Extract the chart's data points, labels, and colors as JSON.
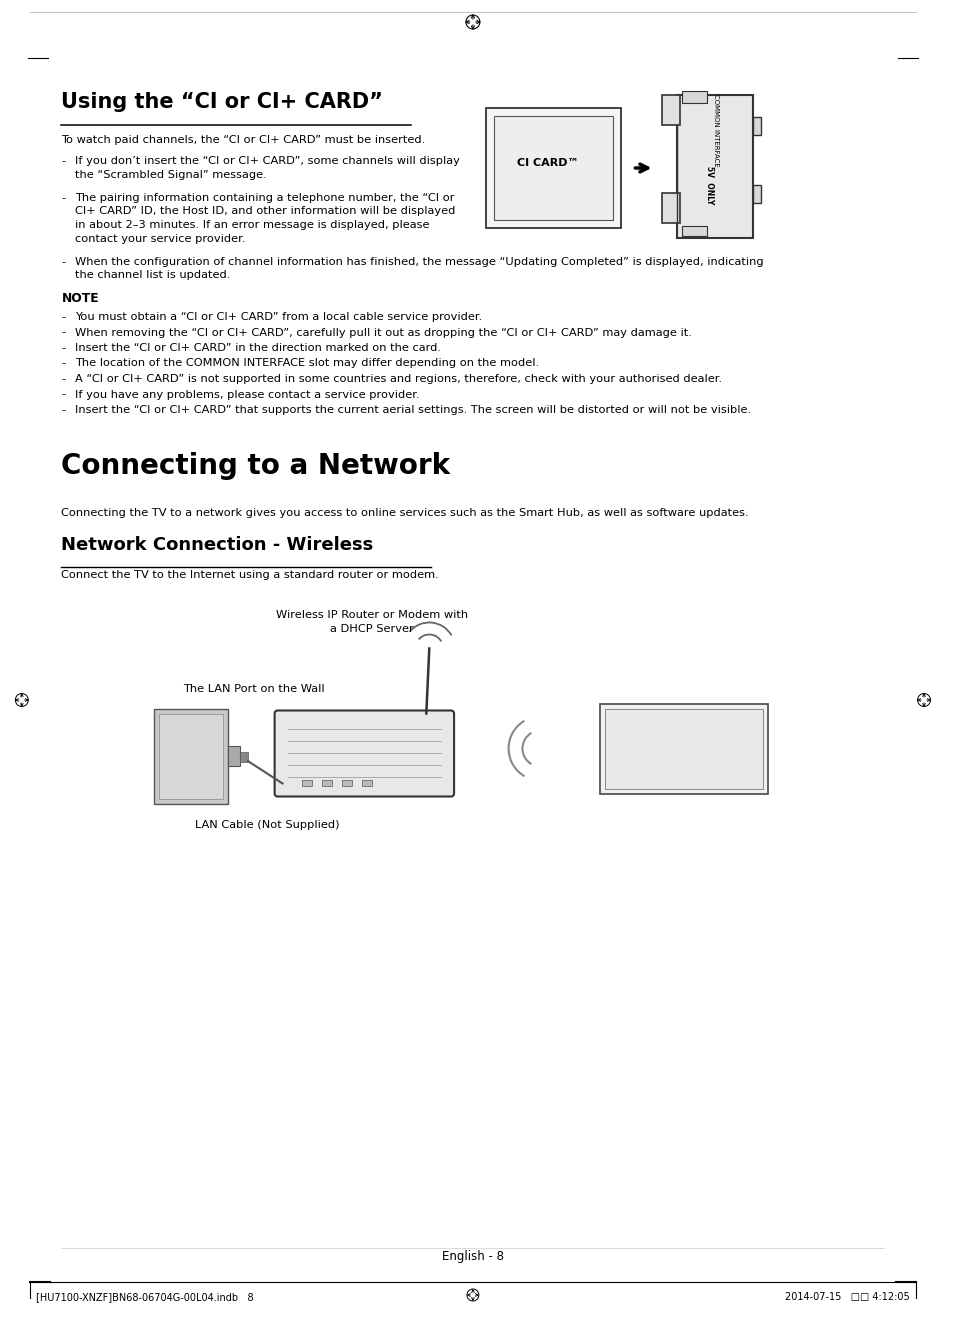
{
  "bg_color": "#ffffff",
  "text_color": "#000000",
  "page_width": 9.54,
  "page_height": 13.21,
  "title1": "Using the “CI or CI+ CARD”",
  "title2": "Connecting to a Network",
  "title3": "Network Connection - Wireless",
  "subtitle1": "To watch paid channels, the “CI or CI+ CARD” must be inserted.",
  "subtitle2": "Connecting the TV to a network gives you access to online services such as the Smart Hub, as well as software updates.",
  "subtitle3": "Connect the TV to the Internet using a standard router or modem.",
  "note_label": "NOTE",
  "bullet1_line1": "If you don’t insert the “CI or CI+ CARD”, some channels will display",
  "bullet1_line2": "the “Scrambled Signal” message.",
  "bullet2_line1": "The pairing information containing a telephone number, the “CI or",
  "bullet2_line2": "CI+ CARD” ID, the Host ID, and other information will be displayed",
  "bullet2_line3": "in about 2–3 minutes. If an error message is displayed, please",
  "bullet2_line4": "contact your service provider.",
  "bullet3_line1": "When the configuration of channel information has finished, the message “Updating Completed” is displayed, indicating",
  "bullet3_line2": "the channel list is updated.",
  "note_items": [
    "You must obtain a “CI or CI+ CARD” from a local cable service provider.",
    "When removing the “CI or CI+ CARD”, carefully pull it out as dropping the “CI or CI+ CARD” may damage it.",
    "Insert the “CI or CI+ CARD” in the direction marked on the card.",
    "The location of the COMMON INTERFACE slot may differ depending on the model.",
    "A “CI or CI+ CARD” is not supported in some countries and regions, therefore, check with your authorised dealer.",
    "If you have any problems, please contact a service provider.",
    "Insert the “CI or CI+ CARD” that supports the current aerial settings. The screen will be distorted or will not be visible."
  ],
  "footer_center": "English - 8",
  "footer_left": "[HU7100-XNZF]BN68-06704G-00L04.indb   8",
  "footer_right": "2014-07-15   □□ 4:12:05",
  "wireless_label1": "Wireless IP Router or Modem with",
  "wireless_label2": "a DHCP Server",
  "wireless_label3": "The LAN Port on the Wall",
  "wireless_label4": "LAN Cable (Not Supplied)"
}
